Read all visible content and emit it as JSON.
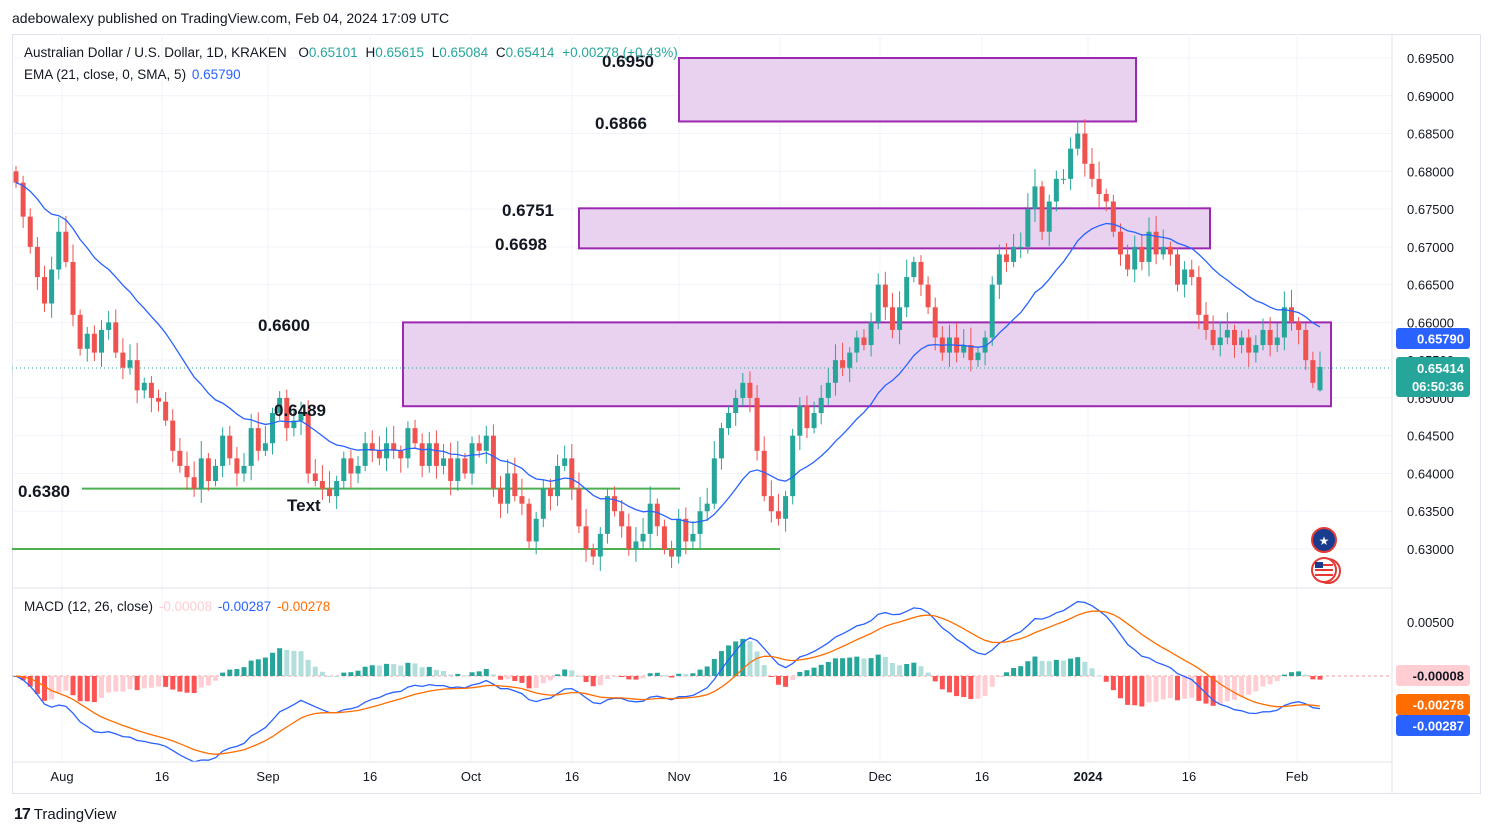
{
  "header": {
    "published": "adebowalexy published on TradingView.com, Feb 04, 2024 17:09 UTC"
  },
  "legend": {
    "symbol": "Australian Dollar / U.S. Dollar, 1D, KRAKEN",
    "o_label": "O",
    "o_value": "0.65101",
    "h_label": "H",
    "h_value": "0.65615",
    "l_label": "L",
    "l_value": "0.65084",
    "c_label": "C",
    "c_value": "0.65414",
    "change": "+0.00278 (+0.43%)",
    "ema_label": "EMA (21, close, 0, SMA, 5)",
    "ema_value": "0.65790",
    "macd_label": "MACD (12, 26, close)",
    "macd_hist": "-0.00008",
    "macd_line": "-0.00287",
    "macd_signal": "-0.00278"
  },
  "colors": {
    "up": "#26a69a",
    "down": "#ef5350",
    "ema": "#2962ff",
    "zone_fill": "#e9d2f0",
    "zone_border": "#9c27b0",
    "support": "#4caf50",
    "macd_line": "#2962ff",
    "signal_line": "#ff6d00",
    "hist_up_strong": "#26a69a",
    "hist_up_weak": "#b2dfdb",
    "hist_down_strong": "#ff5252",
    "hist_down_weak": "#ffcdd2"
  },
  "annotations": {
    "l6950": "0.6950",
    "l6866": "0.6866",
    "l6751": "0.6751",
    "l6698": "0.6698",
    "l6600": "0.6600",
    "l6489": "0.6489",
    "l6380": "0.6380",
    "text": "Text"
  },
  "price_scale_tags": {
    "ema": "0.65790",
    "price": "0.65414",
    "countdown": "06:50:36"
  },
  "macd_scale_tags": {
    "hist": "-0.00008",
    "signal": "-0.00278",
    "macd": "-0.00287"
  },
  "footer": {
    "brand": "TradingView",
    "logo_glyph": "17"
  },
  "chart_data": {
    "type": "candlestick",
    "symbol": "AUDUSD",
    "interval": "1D",
    "price_axis": {
      "ticks": [
        0.63,
        0.635,
        0.64,
        0.645,
        0.65,
        0.655,
        0.66,
        0.665,
        0.67,
        0.675,
        0.68,
        0.685,
        0.69,
        0.695
      ],
      "tick_labels": [
        "0.63000",
        "0.63500",
        "0.64000",
        "0.64500",
        "0.65000",
        "0.65500",
        "0.66000",
        "0.66500",
        "0.67000",
        "0.67500",
        "0.68000",
        "0.68500",
        "0.69000",
        "0.69500"
      ]
    },
    "macd_axis": {
      "ticks": [
        0.005
      ],
      "tick_labels": [
        "0.00500"
      ]
    },
    "time_axis": [
      "Aug",
      "16",
      "Sep",
      "16",
      "Oct",
      "16",
      "Nov",
      "16",
      "Dec",
      "16",
      "2024",
      "16",
      "Feb"
    ],
    "close_series": [
      0.6785,
      0.674,
      0.67,
      0.666,
      0.6625,
      0.667,
      0.672,
      0.668,
      0.661,
      0.6565,
      0.6585,
      0.656,
      0.659,
      0.66,
      0.656,
      0.654,
      0.655,
      0.651,
      0.652,
      0.65,
      0.6495,
      0.647,
      0.643,
      0.641,
      0.6395,
      0.638,
      0.642,
      0.639,
      0.641,
      0.645,
      0.642,
      0.64,
      0.641,
      0.646,
      0.643,
      0.644,
      0.648,
      0.65,
      0.646,
      0.647,
      0.648,
      0.64,
      0.639,
      0.638,
      0.637,
      0.639,
      0.642,
      0.64,
      0.641,
      0.644,
      0.643,
      0.642,
      0.644,
      0.643,
      0.642,
      0.646,
      0.644,
      0.641,
      0.644,
      0.641,
      0.642,
      0.639,
      0.642,
      0.64,
      0.644,
      0.643,
      0.645,
      0.638,
      0.636,
      0.64,
      0.637,
      0.636,
      0.631,
      0.634,
      0.638,
      0.637,
      0.641,
      0.642,
      0.638,
      0.633,
      0.63,
      0.629,
      0.632,
      0.637,
      0.635,
      0.633,
      0.63,
      0.631,
      0.632,
      0.636,
      0.633,
      0.63,
      0.629,
      0.634,
      0.631,
      0.632,
      0.635,
      0.636,
      0.642,
      0.646,
      0.648,
      0.65,
      0.652,
      0.65,
      0.643,
      0.637,
      0.635,
      0.634,
      0.637,
      0.645,
      0.649,
      0.646,
      0.648,
      0.65,
      0.652,
      0.655,
      0.654,
      0.656,
      0.658,
      0.657,
      0.66,
      0.665,
      0.662,
      0.659,
      0.662,
      0.666,
      0.668,
      0.665,
      0.662,
      0.658,
      0.656,
      0.658,
      0.656,
      0.657,
      0.655,
      0.656,
      0.658,
      0.665,
      0.669,
      0.668,
      0.67,
      0.67,
      0.675,
      0.678,
      0.672,
      0.676,
      0.679,
      0.679,
      0.683,
      0.685,
      0.681,
      0.679,
      0.677,
      0.676,
      0.672,
      0.669,
      0.667,
      0.67,
      0.668,
      0.672,
      0.669,
      0.67,
      0.669,
      0.665,
      0.667,
      0.666,
      0.661,
      0.659,
      0.657,
      0.658,
      0.659,
      0.657,
      0.658,
      0.656,
      0.657,
      0.659,
      0.657,
      0.658,
      0.662,
      0.66,
      0.659,
      0.655,
      0.652,
      0.6541
    ],
    "ema_last": 0.6579,
    "last": {
      "open": 0.65101,
      "high": 0.65615,
      "low": 0.65084,
      "close": 0.65414
    },
    "zones": [
      {
        "label_top": "0.6950",
        "label_bottom": "0.6866",
        "high": 0.695,
        "low": 0.6866
      },
      {
        "label_top": "0.6751",
        "label_bottom": "0.6698",
        "high": 0.6751,
        "low": 0.6698
      },
      {
        "label_top": "0.6600",
        "label_bottom": "0.6489",
        "high": 0.66,
        "low": 0.6489
      }
    ],
    "support_lines": [
      {
        "label": "0.6380",
        "value": 0.638
      },
      {
        "label": "",
        "value": 0.63
      }
    ],
    "macd": {
      "macd": -0.00287,
      "signal": -0.00278,
      "histogram": -8e-05
    }
  }
}
